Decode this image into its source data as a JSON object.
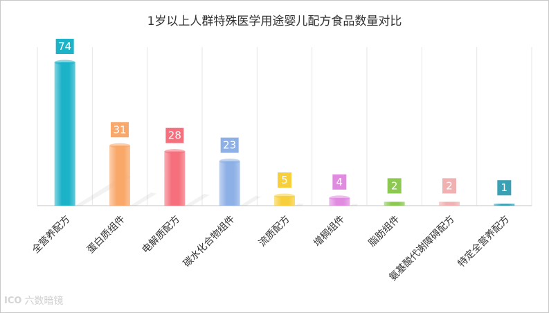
{
  "chart_data": {
    "type": "bar",
    "title": "1岁以上人群特殊医学用途婴儿配方食品数量对比",
    "categories": [
      "全营养配方",
      "蛋白质组件",
      "电解质配方",
      "碳水化合物组件",
      "流质配方",
      "增稠组件",
      "脂肪组件",
      "氨基酸代谢障碍配方",
      "特定全营养配方"
    ],
    "values": [
      74,
      31,
      28,
      23,
      5,
      4,
      2,
      2,
      1
    ],
    "colors": [
      "#1cb2c8",
      "#f9a86a",
      "#f56f7c",
      "#8db0e6",
      "#f7cf3a",
      "#e08be0",
      "#8cc852",
      "#efb1b1",
      "#3aa0b4"
    ],
    "ylim": [
      0,
      80
    ],
    "xlabel": "",
    "ylabel": "",
    "grid": "vertical",
    "legend": "none"
  },
  "watermark": {
    "mark": "ICO",
    "text": "六数暗镜"
  }
}
